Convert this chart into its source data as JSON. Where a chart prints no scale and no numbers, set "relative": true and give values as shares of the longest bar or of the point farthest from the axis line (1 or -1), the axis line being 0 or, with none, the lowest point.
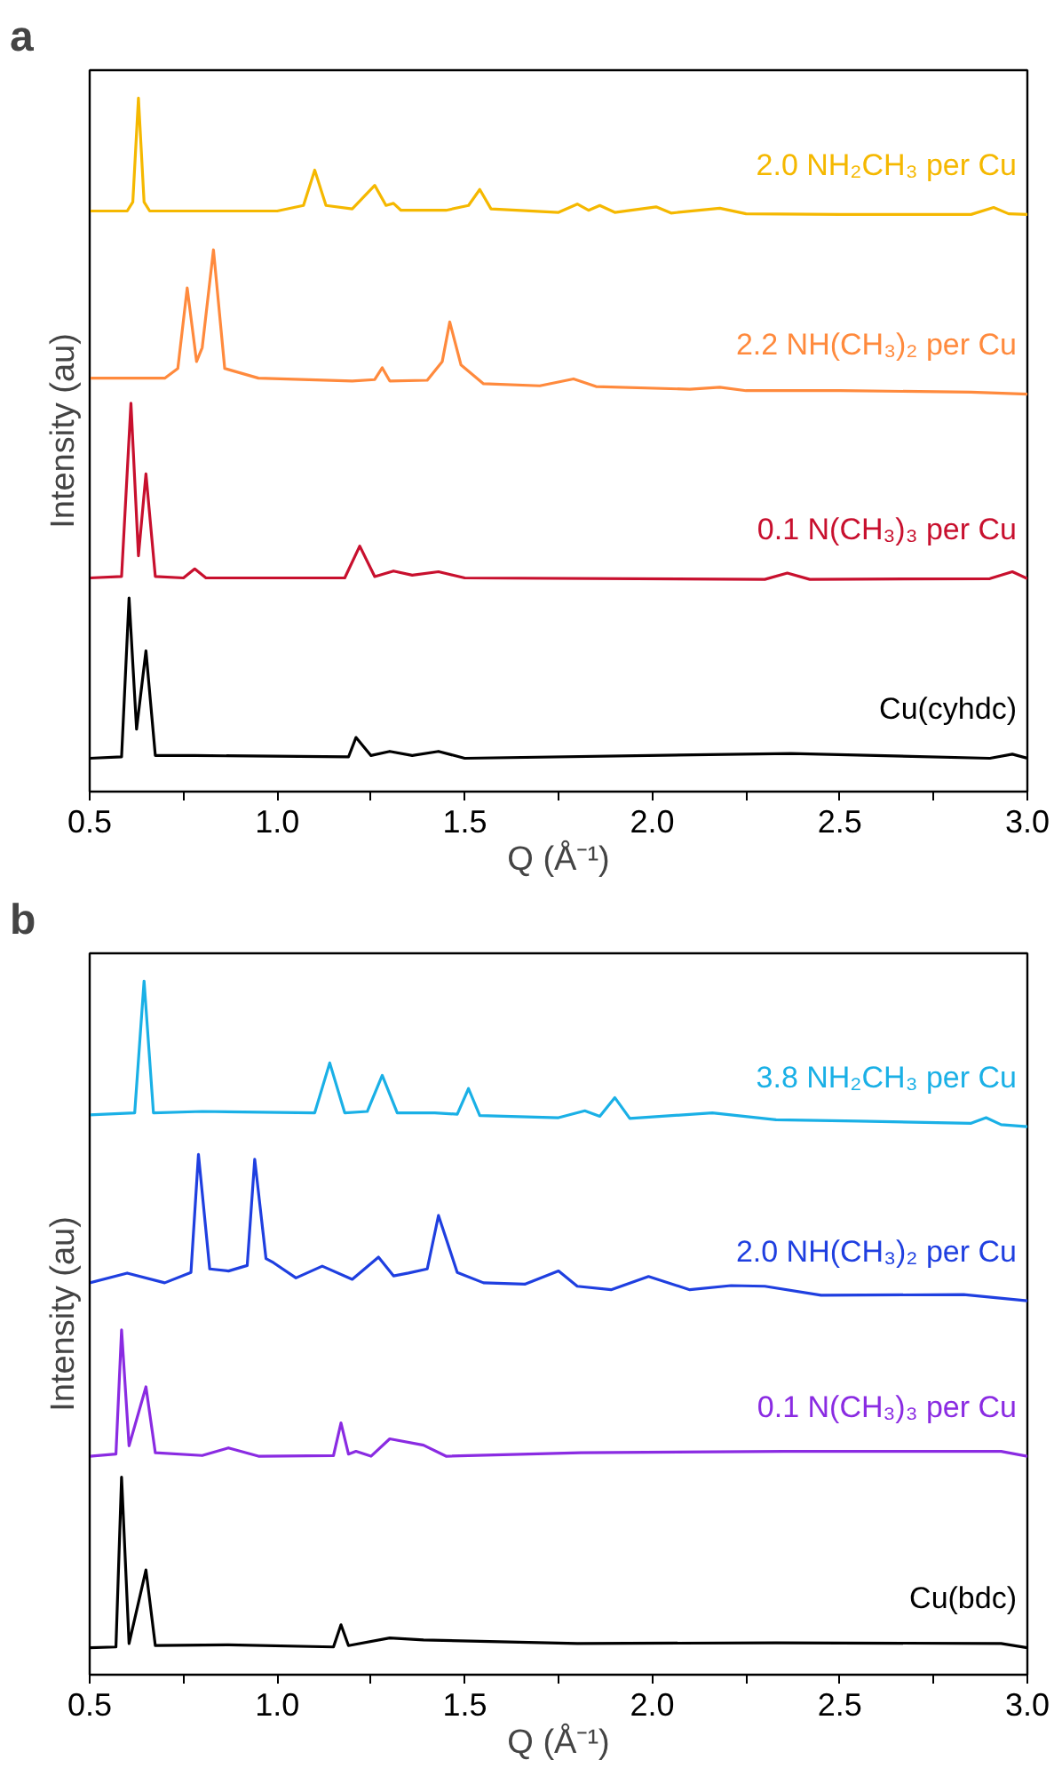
{
  "chart_data": [
    {
      "type": "line",
      "title": "a",
      "xlabel": "Q (Å⁻¹)",
      "ylabel": "Intensity (au)",
      "relative": true,
      "grid": false,
      "marker": "none",
      "line_style": "solid",
      "tick_labels": "x",
      "xlim": [
        0.5,
        3.0
      ],
      "xticks": [
        {
          "value": 0.5,
          "label": "0.5"
        },
        {
          "value": 0.75,
          "label": null
        },
        {
          "value": 1.0,
          "label": "1.0"
        },
        {
          "value": 1.25,
          "label": null
        },
        {
          "value": 1.5,
          "label": "1.5"
        },
        {
          "value": 1.75,
          "label": null
        },
        {
          "value": 2.0,
          "label": "2.0"
        },
        {
          "value": 2.25,
          "label": null
        },
        {
          "value": 2.5,
          "label": "2.5"
        },
        {
          "value": 2.75,
          "label": null
        },
        {
          "value": 3.0,
          "label": "3.0"
        }
      ],
      "series": [
        {
          "name": "2.0 NH₂CH₃ per Cu",
          "color": "#f5b800",
          "x": [
            0.5,
            0.6,
            0.615,
            0.63,
            0.645,
            0.66,
            1.0,
            1.07,
            1.1,
            1.13,
            1.2,
            1.26,
            1.29,
            1.31,
            1.33,
            1.45,
            1.51,
            1.54,
            1.57,
            1.75,
            1.8,
            1.83,
            1.86,
            1.9,
            2.01,
            2.05,
            2.18,
            2.25,
            2.5,
            2.85,
            2.91,
            2.95,
            3.0
          ],
          "values": [
            0.837,
            0.837,
            0.85,
            1,
            0.85,
            0.837,
            0.837,
            0.845,
            0.896,
            0.845,
            0.84,
            0.874,
            0.845,
            0.848,
            0.838,
            0.838,
            0.845,
            0.868,
            0.84,
            0.835,
            0.847,
            0.838,
            0.845,
            0.835,
            0.843,
            0.834,
            0.841,
            0.833,
            0.832,
            0.832,
            0.842,
            0.833,
            0.832
          ]
        },
        {
          "name": "2.2 NH(CH₃)₂ per Cu",
          "color": "#ff8a3d",
          "x": [
            0.5,
            0.7,
            0.735,
            0.76,
            0.785,
            0.8,
            0.83,
            0.86,
            0.95,
            1.2,
            1.26,
            1.28,
            1.3,
            1.4,
            1.44,
            1.46,
            1.49,
            1.55,
            1.7,
            1.79,
            1.85,
            2.1,
            2.18,
            2.25,
            2.5,
            2.85,
            3.0
          ],
          "values": [
            0.596,
            0.596,
            0.61,
            0.726,
            0.62,
            0.64,
            0.781,
            0.61,
            0.596,
            0.592,
            0.594,
            0.611,
            0.592,
            0.593,
            0.62,
            0.677,
            0.615,
            0.588,
            0.585,
            0.595,
            0.584,
            0.58,
            0.583,
            0.578,
            0.578,
            0.576,
            0.573
          ]
        },
        {
          "name": "0.1 N(CH₃)₃ per Cu",
          "color": "#c8102e",
          "x": [
            0.5,
            0.585,
            0.61,
            0.63,
            0.65,
            0.675,
            0.75,
            0.78,
            0.81,
            1.18,
            1.22,
            1.26,
            1.31,
            1.36,
            1.43,
            1.5,
            2.3,
            2.36,
            2.42,
            2.9,
            2.96,
            3.0
          ],
          "values": [
            0.308,
            0.31,
            0.56,
            0.34,
            0.458,
            0.31,
            0.308,
            0.321,
            0.308,
            0.308,
            0.354,
            0.31,
            0.318,
            0.312,
            0.317,
            0.308,
            0.306,
            0.315,
            0.306,
            0.307,
            0.317,
            0.307
          ]
        },
        {
          "name": "Cu(cyhdc)",
          "color": "#000000",
          "x": [
            0.5,
            0.585,
            0.605,
            0.625,
            0.65,
            0.675,
            0.78,
            1.19,
            1.21,
            1.25,
            1.3,
            1.36,
            1.43,
            1.5,
            2.37,
            2.9,
            2.96,
            3.0
          ],
          "values": [
            0.048,
            0.05,
            0.279,
            0.09,
            0.203,
            0.052,
            0.052,
            0.05,
            0.078,
            0.052,
            0.058,
            0.052,
            0.058,
            0.048,
            0.055,
            0.048,
            0.054,
            0.048
          ]
        }
      ]
    },
    {
      "type": "line",
      "title": "b",
      "xlabel": "Q (Å⁻¹)",
      "ylabel": "Intensity (au)",
      "relative": true,
      "grid": false,
      "marker": "none",
      "line_style": "solid",
      "tick_labels": "x",
      "xlim": [
        0.5,
        3.0
      ],
      "xticks": [
        {
          "value": 0.5,
          "label": "0.5"
        },
        {
          "value": 0.75,
          "label": null
        },
        {
          "value": 1.0,
          "label": "1.0"
        },
        {
          "value": 1.25,
          "label": null
        },
        {
          "value": 1.5,
          "label": "1.5"
        },
        {
          "value": 1.75,
          "label": null
        },
        {
          "value": 2.0,
          "label": "2.0"
        },
        {
          "value": 2.25,
          "label": null
        },
        {
          "value": 2.5,
          "label": "2.5"
        },
        {
          "value": 2.75,
          "label": null
        },
        {
          "value": 3.0,
          "label": "3.0"
        }
      ],
      "series": [
        {
          "name": "3.8 NH₂CH₃ per Cu",
          "color": "#1ab0e6",
          "x": [
            0.5,
            0.62,
            0.645,
            0.67,
            0.8,
            1.1,
            1.14,
            1.18,
            1.24,
            1.28,
            1.32,
            1.42,
            1.48,
            1.51,
            1.54,
            1.75,
            1.82,
            1.86,
            1.9,
            1.94,
            2.16,
            2.33,
            2.55,
            2.85,
            2.89,
            2.93,
            3.0
          ],
          "values": [
            0.807,
            0.81,
            1,
            0.81,
            0.812,
            0.81,
            0.882,
            0.81,
            0.812,
            0.864,
            0.81,
            0.81,
            0.808,
            0.845,
            0.806,
            0.803,
            0.813,
            0.805,
            0.832,
            0.802,
            0.81,
            0.8,
            0.798,
            0.795,
            0.803,
            0.793,
            0.79
          ]
        },
        {
          "name": "2.0 NH(CH₃)₂ per Cu",
          "color": "#1f3fe0",
          "x": [
            0.5,
            0.6,
            0.7,
            0.77,
            0.79,
            0.82,
            0.87,
            0.92,
            0.94,
            0.97,
            0.99,
            1.05,
            1.12,
            1.2,
            1.27,
            1.31,
            1.35,
            1.4,
            1.43,
            1.48,
            1.55,
            1.66,
            1.75,
            1.8,
            1.89,
            1.99,
            2.1,
            2.21,
            2.3,
            2.45,
            2.83,
            3.0
          ],
          "values": [
            0.565,
            0.579,
            0.565,
            0.58,
            0.75,
            0.585,
            0.582,
            0.59,
            0.743,
            0.6,
            0.594,
            0.572,
            0.589,
            0.57,
            0.602,
            0.575,
            0.579,
            0.585,
            0.662,
            0.58,
            0.565,
            0.563,
            0.582,
            0.56,
            0.555,
            0.574,
            0.555,
            0.561,
            0.56,
            0.547,
            0.548,
            0.539
          ]
        },
        {
          "name": "0.1 N(CH₃)₃ per Cu",
          "color": "#8a2be2",
          "x": [
            0.5,
            0.57,
            0.585,
            0.605,
            0.65,
            0.675,
            0.8,
            0.87,
            0.95,
            1.15,
            1.17,
            1.19,
            1.21,
            1.25,
            1.3,
            1.39,
            1.45,
            1.81,
            2.35,
            2.93,
            3.0
          ],
          "values": [
            0.315,
            0.318,
            0.497,
            0.33,
            0.415,
            0.32,
            0.316,
            0.327,
            0.315,
            0.316,
            0.363,
            0.318,
            0.322,
            0.315,
            0.34,
            0.331,
            0.315,
            0.32,
            0.322,
            0.322,
            0.315
          ]
        },
        {
          "name": "Cu(bdc)",
          "color": "#000000",
          "x": [
            0.5,
            0.57,
            0.585,
            0.605,
            0.65,
            0.675,
            0.87,
            1.15,
            1.17,
            1.19,
            1.3,
            1.39,
            1.8,
            2.33,
            2.93,
            3.0
          ],
          "values": [
            0.039,
            0.04,
            0.285,
            0.045,
            0.151,
            0.042,
            0.043,
            0.04,
            0.072,
            0.042,
            0.053,
            0.05,
            0.045,
            0.046,
            0.045,
            0.039
          ]
        }
      ]
    }
  ]
}
